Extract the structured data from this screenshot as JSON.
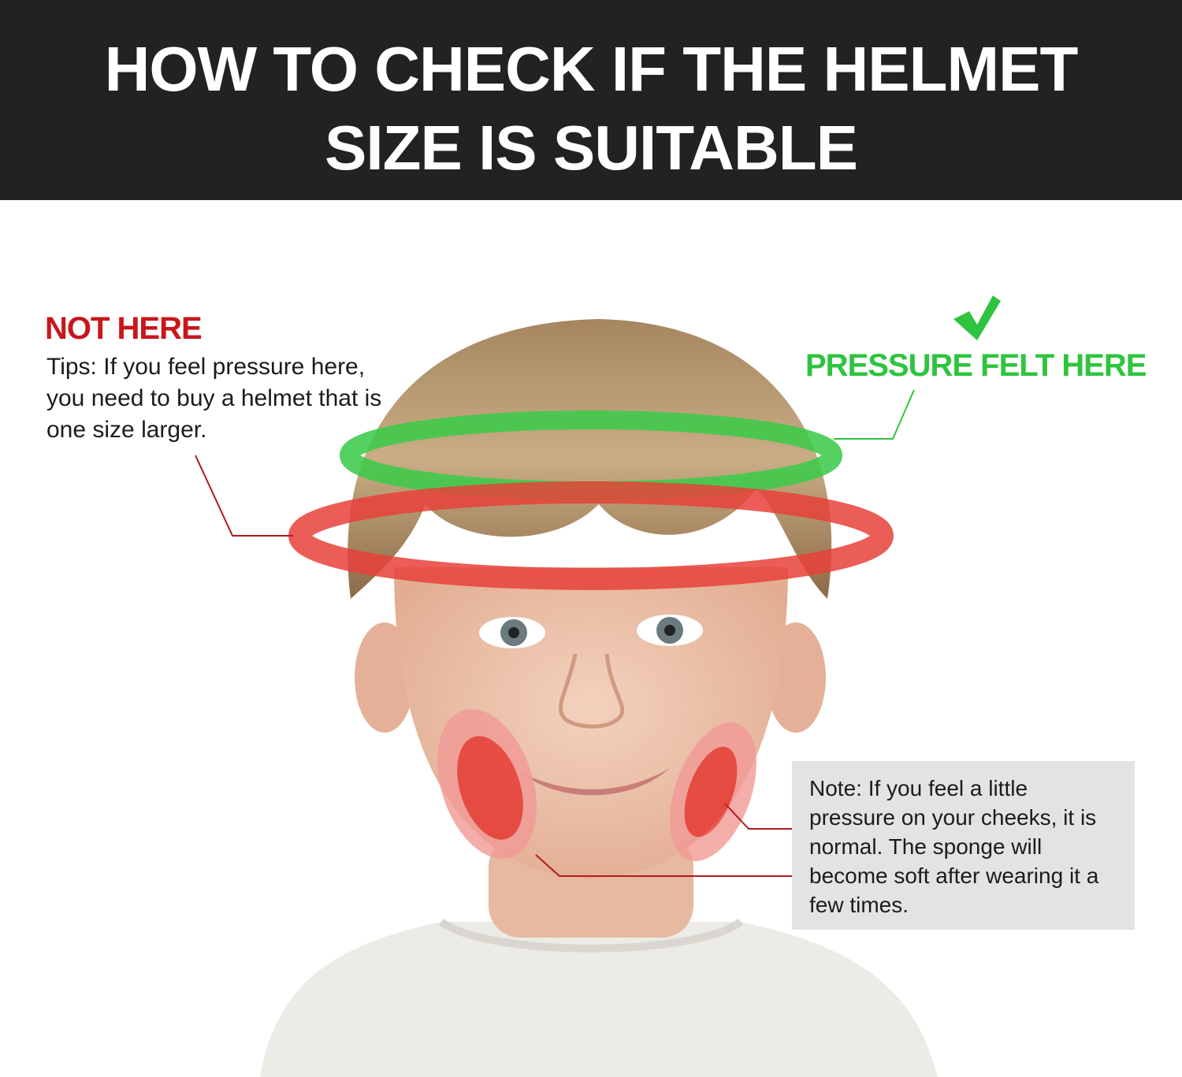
{
  "header": {
    "title_line1": "HOW TO CHECK IF THE HELMET",
    "title_line2": "SIZE IS SUITABLE"
  },
  "callouts": {
    "not_here": {
      "heading": "NOT HERE",
      "text": "Tips: If you feel pressure here, you need to buy a helmet that is one size larger.",
      "color": "#c8161d"
    },
    "pressure_here": {
      "heading": "PRESSURE FELT HERE",
      "icon": "checkmark-icon",
      "color": "#2fc43f"
    },
    "note": {
      "text": "Note: If you feel a little pressure on your cheeks, it is normal. The sponge will become soft after wearing it a few times."
    }
  },
  "colors": {
    "header_bg": "#222222",
    "green_ring": "#3ccb4a",
    "red_ring": "#e8413a",
    "note_bg": "#e3e3e3"
  }
}
